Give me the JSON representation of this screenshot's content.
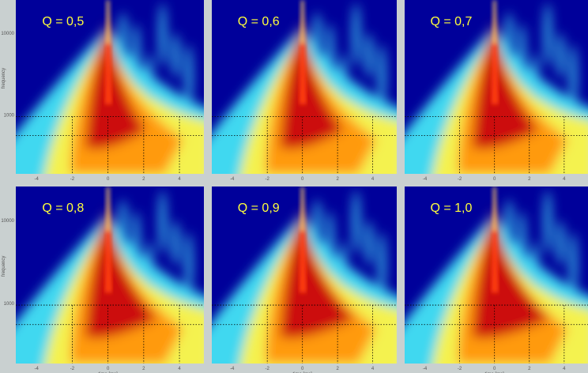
{
  "panels": [
    {
      "title": "Q = 0,5"
    },
    {
      "title": "Q = 0,6"
    },
    {
      "title": "Q = 0,7"
    },
    {
      "title": "Q = 0,8"
    },
    {
      "title": "Q = 0,9"
    },
    {
      "title": "Q = 1,0"
    }
  ],
  "y_axis_label": "frequency",
  "x_axis_label": "time [ms]",
  "y_ticks": [
    "10000",
    "1000"
  ],
  "x_ticks": [
    "-4",
    "-2",
    "0",
    "2",
    "4"
  ]
}
